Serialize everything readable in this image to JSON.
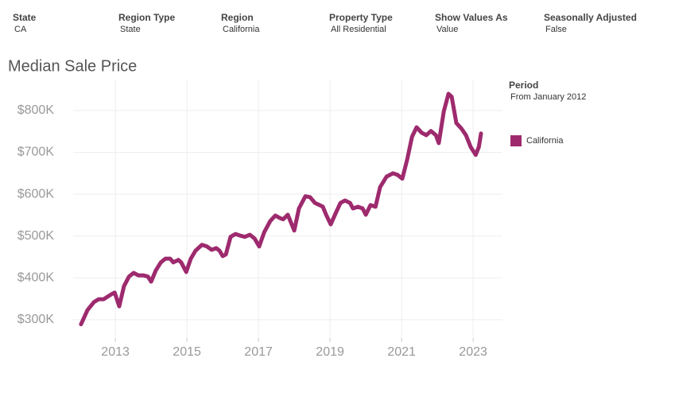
{
  "filters": [
    {
      "label": "State",
      "value": "CA"
    },
    {
      "label": "Region Type",
      "value": "State"
    },
    {
      "label": "Region",
      "value": "California"
    },
    {
      "label": "Property Type",
      "value": "All Residential"
    },
    {
      "label": "Show Values As",
      "value": "Value"
    },
    {
      "label": "Seasonally Adjusted",
      "value": "False"
    }
  ],
  "chart_data": {
    "type": "line",
    "title": "Median Sale Price",
    "legend_title": "Period",
    "legend_subtitle": "From January 2012",
    "x": [
      2012.04,
      2012.22,
      2012.4,
      2012.53,
      2012.67,
      2012.89,
      2012.98,
      2013.11,
      2013.24,
      2013.38,
      2013.51,
      2013.64,
      2013.78,
      2013.91,
      2014.0,
      2014.13,
      2014.27,
      2014.4,
      2014.53,
      2014.62,
      2014.76,
      2014.84,
      2014.98,
      2015.11,
      2015.24,
      2015.42,
      2015.56,
      2015.69,
      2015.82,
      2015.91,
      2016.0,
      2016.09,
      2016.22,
      2016.36,
      2016.49,
      2016.62,
      2016.76,
      2016.89,
      2017.02,
      2017.16,
      2017.33,
      2017.47,
      2017.6,
      2017.69,
      2017.82,
      2018.0,
      2018.13,
      2018.31,
      2018.44,
      2018.58,
      2018.71,
      2018.8,
      2018.89,
      2019.02,
      2019.16,
      2019.29,
      2019.42,
      2019.56,
      2019.64,
      2019.78,
      2019.91,
      2020.0,
      2020.13,
      2020.27,
      2020.4,
      2020.58,
      2020.76,
      2020.89,
      2021.02,
      2021.16,
      2021.29,
      2021.42,
      2021.56,
      2021.69,
      2021.82,
      2021.96,
      2022.04,
      2022.18,
      2022.31,
      2022.4,
      2022.53,
      2022.67,
      2022.8,
      2022.93,
      2023.07,
      2023.16,
      2023.22
    ],
    "series": [
      {
        "name": "California",
        "color": "#9e2a6e",
        "values": [
          289000,
          323000,
          342000,
          349000,
          349000,
          361000,
          365000,
          332000,
          380000,
          403000,
          412000,
          406000,
          406000,
          403000,
          391000,
          418000,
          437000,
          446000,
          446000,
          437000,
          443000,
          437000,
          414000,
          446000,
          465000,
          479000,
          475000,
          467000,
          471000,
          465000,
          452000,
          456000,
          498000,
          505000,
          501000,
          498000,
          503000,
          494000,
          475000,
          509000,
          536000,
          549000,
          543000,
          540000,
          551000,
          513000,
          566000,
          595000,
          593000,
          579000,
          574000,
          570000,
          551000,
          528000,
          555000,
          579000,
          585000,
          579000,
          566000,
          570000,
          566000,
          551000,
          574000,
          570000,
          617000,
          642000,
          650000,
          646000,
          637000,
          684000,
          737000,
          760000,
          747000,
          741000,
          751000,
          741000,
          722000,
          798000,
          840000,
          833000,
          770000,
          757000,
          741000,
          713000,
          694000,
          713000,
          745000
        ]
      }
    ],
    "xlim": [
      2011.82,
      2023.82
    ],
    "ylim": [
      256000,
      874000
    ],
    "xticks": [
      2013,
      2015,
      2017,
      2019,
      2021,
      2023
    ],
    "yticks": [
      {
        "value": 300000,
        "label": "$300K"
      },
      {
        "value": 400000,
        "label": "$400K"
      },
      {
        "value": 500000,
        "label": "$500K"
      },
      {
        "value": 600000,
        "label": "$600K"
      },
      {
        "value": 700000,
        "label": "$700K"
      },
      {
        "value": 800000,
        "label": "$800K"
      }
    ],
    "grid": true
  }
}
